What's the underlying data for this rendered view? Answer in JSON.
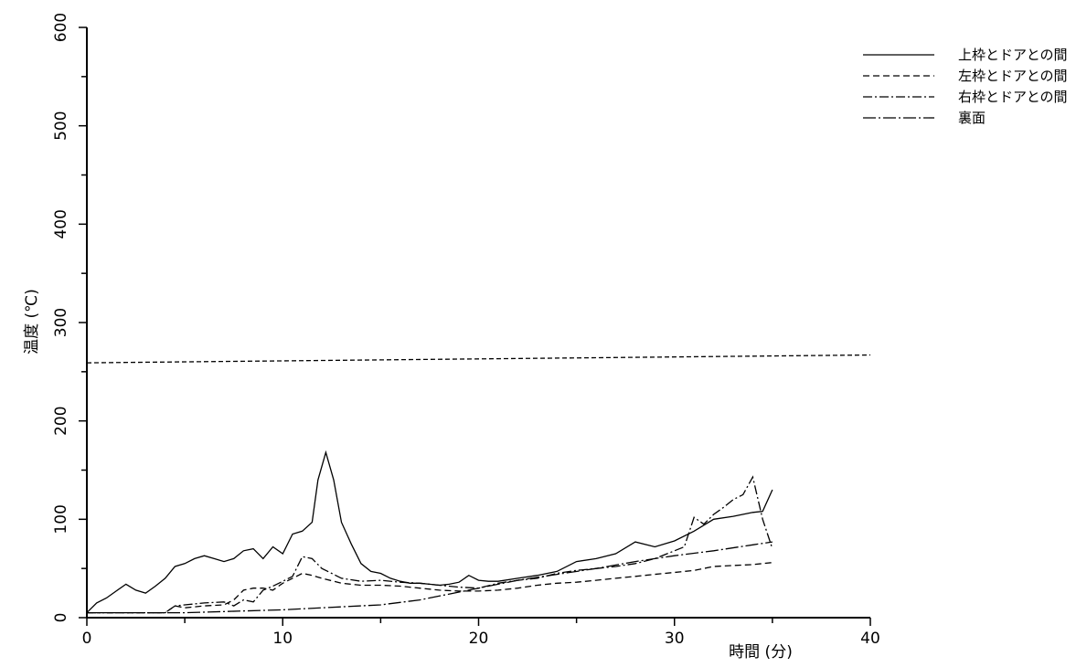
{
  "chart_data": {
    "type": "line",
    "xlabel": "時間 (分)",
    "ylabel": "温度 (℃)",
    "xlim": [
      0,
      40
    ],
    "ylim": [
      0,
      600
    ],
    "xticks": [
      "0",
      "10",
      "20",
      "30",
      "40"
    ],
    "yticks": [
      "0",
      "100",
      "200",
      "300",
      "400",
      "500",
      "600"
    ],
    "grid": false,
    "legend_position": "top-right",
    "series": [
      {
        "name": "上枠とドアとの間",
        "style": "solid",
        "x": [
          0,
          0.5,
          1,
          1.5,
          2,
          2.5,
          3,
          3.5,
          4,
          4.5,
          5,
          5.5,
          6,
          6.5,
          7,
          7.5,
          8,
          8.5,
          9,
          9.5,
          10,
          10.5,
          11,
          11.5,
          11.8,
          12.2,
          12.6,
          13,
          13.5,
          14,
          14.5,
          15,
          15.5,
          16,
          16.5,
          17,
          17.5,
          18,
          18.5,
          19,
          19.5,
          20,
          20.5,
          21,
          22,
          23,
          24,
          25,
          26,
          27,
          28,
          29,
          30,
          31,
          32,
          33,
          34,
          34.5,
          35
        ],
        "y": [
          5,
          15,
          20,
          27,
          34,
          28,
          25,
          32,
          40,
          52,
          55,
          60,
          63,
          60,
          57,
          60,
          68,
          70,
          60,
          72,
          65,
          85,
          88,
          97,
          140,
          168,
          140,
          97,
          75,
          55,
          47,
          45,
          40,
          37,
          35,
          35,
          34,
          33,
          34,
          36,
          43,
          38,
          37,
          37,
          40,
          43,
          47,
          57,
          60,
          65,
          77,
          72,
          78,
          88,
          100,
          103,
          107,
          108,
          130
        ]
      },
      {
        "name": "左枠とドアとの間",
        "style": "dashed",
        "x": [
          0,
          2,
          4,
          4.5,
          5,
          6,
          7,
          7.5,
          8,
          8.5,
          9,
          9.5,
          10,
          10.5,
          11,
          11.5,
          12,
          13,
          14,
          15,
          16,
          17,
          18,
          19,
          20,
          21,
          22,
          23,
          24,
          25,
          26,
          27,
          28,
          29,
          30,
          31,
          32,
          33,
          34,
          35
        ],
        "y": [
          5,
          5,
          5,
          12,
          10,
          12,
          13,
          18,
          28,
          30,
          30,
          28,
          35,
          40,
          45,
          43,
          40,
          35,
          33,
          33,
          32,
          30,
          28,
          27,
          27,
          28,
          30,
          33,
          35,
          36,
          38,
          40,
          42,
          44,
          46,
          48,
          52,
          53,
          54,
          56
        ]
      },
      {
        "name": "右枠とドアとの間",
        "style": "dash-dot",
        "x": [
          0,
          2,
          4,
          4.5,
          5,
          6,
          7,
          7.5,
          8,
          8.5,
          9,
          9.5,
          10,
          10.5,
          11,
          11.5,
          12,
          12.5,
          13,
          14,
          15,
          16,
          17,
          18,
          19,
          20,
          21,
          22,
          23,
          24,
          25,
          26,
          27,
          28,
          29,
          30,
          30.5,
          31,
          31.5,
          32,
          32.5,
          33,
          33.5,
          34,
          34.5,
          35
        ],
        "y": [
          5,
          5,
          5,
          12,
          13,
          15,
          16,
          12,
          18,
          16,
          28,
          32,
          37,
          42,
          62,
          60,
          50,
          45,
          40,
          37,
          38,
          36,
          35,
          33,
          31,
          30,
          35,
          38,
          40,
          45,
          48,
          50,
          52,
          55,
          60,
          68,
          72,
          102,
          95,
          105,
          112,
          120,
          125,
          143,
          100,
          70
        ]
      },
      {
        "name": "裏面",
        "style": "long-dash-dot",
        "x": [
          0,
          5,
          10,
          12,
          15,
          17,
          18,
          19,
          20,
          22,
          24,
          26,
          28,
          30,
          32,
          34,
          35
        ],
        "y": [
          5,
          5,
          8,
          10,
          13,
          18,
          22,
          26,
          30,
          38,
          44,
          50,
          57,
          63,
          68,
          74,
          77
        ]
      },
      {
        "name": "",
        "style": "short-dash",
        "x": [
          0,
          40
        ],
        "y": [
          259,
          267
        ]
      }
    ]
  }
}
